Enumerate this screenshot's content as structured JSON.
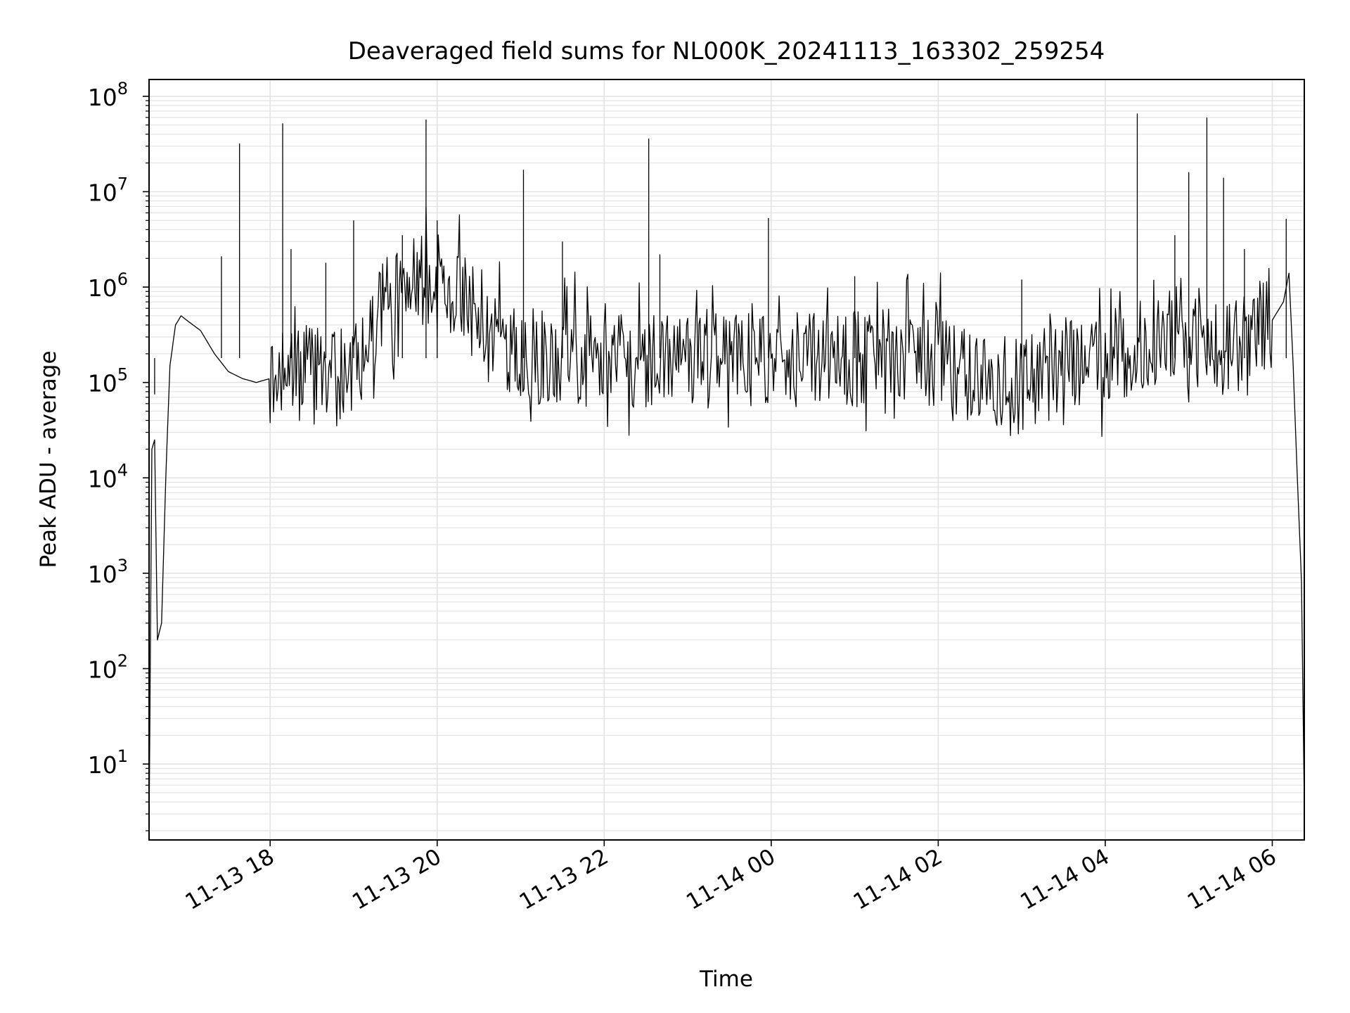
{
  "chart_data": {
    "type": "line",
    "title": "Deaveraged field sums for NL000K_20241113_163302_259254",
    "xlabel": "Time",
    "ylabel": "Peak ADU - average",
    "y_scale": "log",
    "ylim": [
      1.6,
      150000000
    ],
    "xlim": [
      "2024-11-13 16:33",
      "2024-11-14 06:23"
    ],
    "grid": true,
    "line_color": "#000000",
    "grid_color": "#e3e3e3",
    "x_ticks": [
      {
        "label": "11-13 18",
        "t": "2024-11-13 18:00"
      },
      {
        "label": "11-13 20",
        "t": "2024-11-13 20:00"
      },
      {
        "label": "11-13 22",
        "t": "2024-11-13 22:00"
      },
      {
        "label": "11-14 00",
        "t": "2024-11-14 00:00"
      },
      {
        "label": "11-14 02",
        "t": "2024-11-14 02:00"
      },
      {
        "label": "11-14 04",
        "t": "2024-11-14 04:00"
      },
      {
        "label": "11-14 06",
        "t": "2024-11-14 06:00"
      }
    ],
    "y_ticks": [
      {
        "base": "10",
        "exp": "1",
        "value": 10
      },
      {
        "base": "10",
        "exp": "2",
        "value": 100
      },
      {
        "base": "10",
        "exp": "3",
        "value": 1000
      },
      {
        "base": "10",
        "exp": "4",
        "value": 10000
      },
      {
        "base": "10",
        "exp": "5",
        "value": 100000
      },
      {
        "base": "10",
        "exp": "6",
        "value": 1000000
      },
      {
        "base": "10",
        "exp": "7",
        "value": 10000000
      },
      {
        "base": "10",
        "exp": "8",
        "value": 100000000
      }
    ],
    "series": [
      {
        "x": [
          "2024-11-13 16:33",
          "2024-11-13 16:35",
          "2024-11-13 16:37",
          "2024-11-13 16:39",
          "2024-11-13 16:42",
          "2024-11-13 16:45",
          "2024-11-13 16:48",
          "2024-11-13 16:52",
          "2024-11-13 16:56",
          "2024-11-13 17:00",
          "2024-11-13 17:10",
          "2024-11-13 17:20",
          "2024-11-13 17:30",
          "2024-11-13 17:40",
          "2024-11-13 17:50",
          "2024-11-13 18:00",
          "2024-11-13 18:30",
          "2024-11-13 19:00",
          "2024-11-13 19:20",
          "2024-11-13 19:40",
          "2024-11-13 20:00",
          "2024-11-13 20:20",
          "2024-11-13 20:40",
          "2024-11-13 21:00",
          "2024-11-13 22:00",
          "2024-11-13 23:00",
          "2024-11-14 00:00",
          "2024-11-14 01:00",
          "2024-11-14 01:30",
          "2024-11-14 02:00",
          "2024-11-14 02:30",
          "2024-11-14 03:00",
          "2024-11-14 03:30",
          "2024-11-14 04:00",
          "2024-11-14 04:30",
          "2024-11-14 05:00",
          "2024-11-14 05:30",
          "2024-11-14 06:00",
          "2024-11-14 06:08",
          "2024-11-14 06:12",
          "2024-11-14 06:15",
          "2024-11-14 06:18",
          "2024-11-14 06:21",
          "2024-11-14 06:23"
        ],
        "y": [
          2,
          20000,
          25000,
          200,
          300,
          10000,
          150000,
          400000,
          500000,
          450000,
          350000,
          200000,
          130000,
          110000,
          100000,
          110000,
          130000,
          120000,
          600000,
          1000000,
          1300000,
          700000,
          250000,
          180000,
          170000,
          170000,
          170000,
          180000,
          190000,
          170000,
          110000,
          90000,
          160000,
          180000,
          250000,
          280000,
          220000,
          450000,
          700000,
          1400000,
          150000,
          10000,
          800,
          3.7
        ]
      }
    ],
    "spikes": [
      {
        "t": "2024-11-13 16:37",
        "y": 75000
      },
      {
        "t": "2024-11-13 17:25",
        "y": 2100000
      },
      {
        "t": "2024-11-13 17:38",
        "y": 32000000
      },
      {
        "t": "2024-11-13 18:09",
        "y": 52000000
      },
      {
        "t": "2024-11-13 18:15",
        "y": 2500000
      },
      {
        "t": "2024-11-13 18:40",
        "y": 1800000
      },
      {
        "t": "2024-11-13 19:00",
        "y": 5000000
      },
      {
        "t": "2024-11-13 19:35",
        "y": 3500000
      },
      {
        "t": "2024-11-13 19:52",
        "y": 57000000
      },
      {
        "t": "2024-11-13 20:00",
        "y": 5000000
      },
      {
        "t": "2024-11-13 21:02",
        "y": 17000000
      },
      {
        "t": "2024-11-13 21:30",
        "y": 3000000
      },
      {
        "t": "2024-11-13 22:32",
        "y": 36000000
      },
      {
        "t": "2024-11-13 22:40",
        "y": 2200000
      },
      {
        "t": "2024-11-13 23:58",
        "y": 5300000
      },
      {
        "t": "2024-11-14 01:00",
        "y": 1300000
      },
      {
        "t": "2024-11-14 03:00",
        "y": 1200000
      },
      {
        "t": "2024-11-14 04:23",
        "y": 66000000
      },
      {
        "t": "2024-11-14 04:50",
        "y": 3500000
      },
      {
        "t": "2024-11-14 05:00",
        "y": 16000000
      },
      {
        "t": "2024-11-14 05:13",
        "y": 60000000
      },
      {
        "t": "2024-11-14 05:25",
        "y": 14000000
      },
      {
        "t": "2024-11-14 05:40",
        "y": 2500000
      },
      {
        "t": "2024-11-14 06:10",
        "y": 5200000
      }
    ]
  }
}
